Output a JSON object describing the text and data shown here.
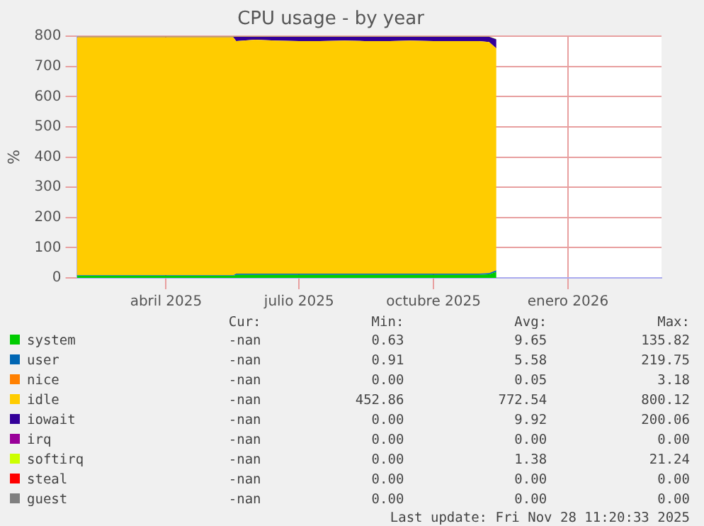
{
  "chart_data": {
    "type": "area",
    "stacked": true,
    "title": "CPU usage - by year",
    "ylabel": "%",
    "x": [
      "2025-01-30",
      "2025-02-15",
      "2025-03-01",
      "2025-03-15",
      "2025-04-01",
      "2025-04-15",
      "2025-05-01",
      "2025-05-17",
      "2025-05-19",
      "2025-06-01",
      "2025-06-15",
      "2025-07-01",
      "2025-07-15",
      "2025-08-01",
      "2025-08-15",
      "2025-09-01",
      "2025-09-15",
      "2025-10-01",
      "2025-10-15",
      "2025-11-01",
      "2025-11-08",
      "2025-11-13"
    ],
    "xlim": [
      "2025-01-30",
      "2026-03-06"
    ],
    "xticks": [
      {
        "value": "2025-04-01",
        "label": "abril 2025"
      },
      {
        "value": "2025-07-01",
        "label": "julio 2025"
      },
      {
        "value": "2025-10-01",
        "label": "octubre 2025"
      },
      {
        "value": "2026-01-01",
        "label": "enero 2026"
      }
    ],
    "ylim": [
      0,
      800
    ],
    "yticks": [
      0,
      100,
      200,
      300,
      400,
      500,
      600,
      700,
      800
    ],
    "grid": true,
    "legend": "bottom",
    "series": [
      {
        "name": "system",
        "color": "#00cc00",
        "values": [
          7,
          7,
          7,
          7,
          7,
          7,
          7,
          7,
          10,
          10,
          10,
          10,
          10,
          10,
          10,
          10,
          10,
          10,
          10,
          10,
          12,
          20
        ]
      },
      {
        "name": "user",
        "color": "#0066b3",
        "values": [
          2,
          2,
          2,
          2,
          2,
          2,
          2,
          2,
          4,
          4,
          4,
          4,
          4,
          4,
          4,
          4,
          4,
          4,
          4,
          4,
          4,
          5
        ]
      },
      {
        "name": "nice",
        "color": "#ff8000",
        "values": [
          null,
          null,
          null,
          null,
          null,
          null,
          null,
          null,
          null,
          null,
          null,
          null,
          null,
          null,
          null,
          null,
          null,
          null,
          null,
          null,
          null,
          null
        ]
      },
      {
        "name": "idle",
        "color": "#ffcc00",
        "values": [
          788,
          788,
          788,
          788,
          788,
          788,
          788,
          788,
          770,
          775,
          772,
          770,
          770,
          772,
          770,
          770,
          772,
          770,
          770,
          770,
          765,
          735
        ]
      },
      {
        "name": "iowait",
        "color": "#330099",
        "values": [
          2,
          2,
          2,
          2,
          2,
          2,
          2,
          2,
          15,
          10,
          13,
          15,
          15,
          13,
          15,
          15,
          13,
          15,
          15,
          15,
          18,
          30
        ]
      },
      {
        "name": "irq",
        "color": "#990099",
        "values": [
          null,
          null,
          null,
          null,
          null,
          null,
          null,
          null,
          null,
          null,
          null,
          null,
          null,
          null,
          null,
          null,
          null,
          null,
          null,
          null,
          null,
          null
        ]
      },
      {
        "name": "softirq",
        "color": "#ccff00",
        "values": [
          1,
          1,
          1,
          1,
          1,
          1,
          1,
          1,
          1,
          1,
          1,
          1,
          1,
          1,
          1,
          1,
          1,
          1,
          1,
          1,
          1,
          1
        ]
      },
      {
        "name": "steal",
        "color": "#ff0000",
        "values": [
          null,
          null,
          null,
          null,
          null,
          null,
          null,
          null,
          null,
          null,
          null,
          null,
          null,
          null,
          null,
          null,
          null,
          null,
          null,
          null,
          null,
          null
        ]
      },
      {
        "name": "guest",
        "color": "#808080",
        "values": [
          null,
          null,
          null,
          null,
          null,
          null,
          null,
          null,
          null,
          null,
          null,
          null,
          null,
          null,
          null,
          null,
          null,
          null,
          null,
          null,
          null,
          null
        ]
      }
    ],
    "annotations": [
      "Cur:",
      "Min:",
      "Avg:",
      "Max:",
      "-nan",
      "0.63",
      "9.65",
      "135.82",
      "-nan",
      "0.91",
      "5.58",
      "219.75",
      "-nan",
      "0.00",
      "0.05",
      "3.18",
      "-nan",
      "452.86",
      "772.54",
      "800.12",
      "-nan",
      "0.00",
      "9.92",
      "200.06",
      "-nan",
      "0.00",
      "0.00",
      "0.00",
      "-nan",
      "0.00",
      "1.38",
      "21.24",
      "-nan",
      "0.00",
      "0.00",
      "0.00",
      "-nan",
      "0.00",
      "0.00",
      "0.00",
      "Last update: Fri Nov 28 11:20:33 2025"
    ]
  }
}
